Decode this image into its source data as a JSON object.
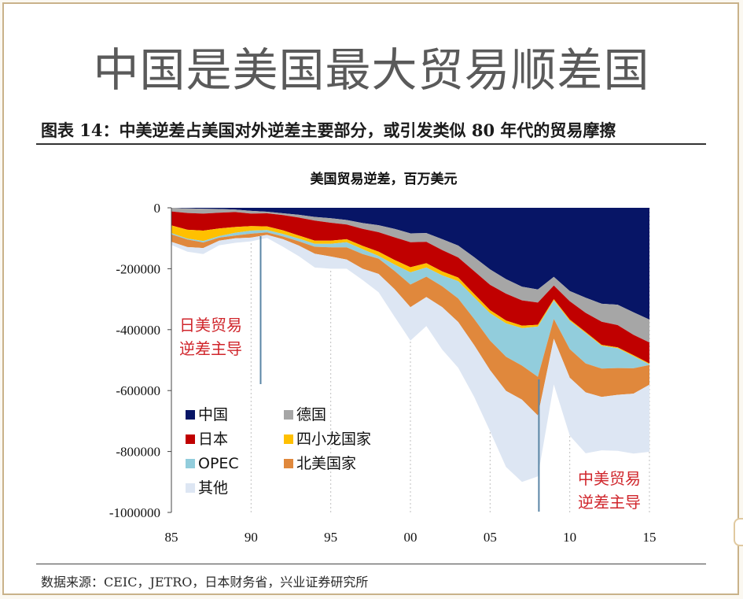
{
  "slide_title": "中国是美国最大贸易顺差国",
  "figure_caption": "图表 14：中美逆差占美国对外逆差主要部分，或引发类似 80 年代的贸易摩擦",
  "source_note": "数据来源：CEIC，JETRO，日本财务省，兴业证券研究所",
  "chart_data": {
    "type": "area",
    "stacked": true,
    "title": "美国贸易逆差，百万美元",
    "xlabel": "",
    "ylabel": "",
    "x": [
      1985,
      1986,
      1987,
      1988,
      1989,
      1990,
      1991,
      1992,
      1993,
      1994,
      1995,
      1996,
      1997,
      1998,
      1999,
      2000,
      2001,
      2002,
      2003,
      2004,
      2005,
      2006,
      2007,
      2008,
      2009,
      2010,
      2011,
      2012,
      2013,
      2014,
      2015
    ],
    "xtick_values": [
      1985,
      1990,
      1995,
      2000,
      2005,
      2010,
      2015
    ],
    "xtick_labels": [
      "85",
      "90",
      "95",
      "00",
      "05",
      "10",
      "15"
    ],
    "ylim": [
      -1000000,
      0
    ],
    "ytick_values": [
      0,
      -200000,
      -400000,
      -600000,
      -800000,
      -1000000
    ],
    "ytick_labels": [
      "0",
      "-200000",
      "-400000",
      "-600000",
      "-800000",
      "-1000000"
    ],
    "grid": "vertical dotted at x ticks",
    "legend_placement": "lower-left, two columns",
    "series": [
      {
        "name": "中国",
        "color": "#071566",
        "values": [
          0,
          -2000,
          -3000,
          -4000,
          -6000,
          -10000,
          -13000,
          -18000,
          -23000,
          -30000,
          -34000,
          -40000,
          -50000,
          -57000,
          -69000,
          -84000,
          -83000,
          -103000,
          -124000,
          -162000,
          -202000,
          -234000,
          -259000,
          -268000,
          -227000,
          -273000,
          -295000,
          -315000,
          -318000,
          -343000,
          -367000
        ]
      },
      {
        "name": "德国",
        "color": "#a6a6a6",
        "values": [
          -12000,
          -15000,
          -16000,
          -12000,
          -8000,
          -9000,
          -5000,
          -6000,
          -9000,
          -12000,
          -15000,
          -15000,
          -19000,
          -23000,
          -28000,
          -29000,
          -29000,
          -36000,
          -39000,
          -46000,
          -51000,
          -48000,
          -45000,
          -43000,
          -28000,
          -34000,
          -50000,
          -59000,
          -67000,
          -74000,
          -75000
        ]
      },
      {
        "name": "日本",
        "color": "#c00000",
        "values": [
          -46000,
          -55000,
          -56000,
          -52000,
          -49000,
          -41000,
          -43000,
          -50000,
          -59000,
          -66000,
          -59000,
          -48000,
          -56000,
          -64000,
          -74000,
          -82000,
          -70000,
          -70000,
          -66000,
          -75000,
          -83000,
          -88000,
          -83000,
          -73000,
          -45000,
          -60000,
          -63000,
          -76000,
          -73000,
          -67000,
          -69000
        ]
      },
      {
        "name": "四小龙国家",
        "color": "#ffc000",
        "values": [
          -25000,
          -29000,
          -34000,
          -25000,
          -19000,
          -15000,
          -12000,
          -12000,
          -10000,
          -10000,
          -10000,
          -10000,
          -11000,
          -14000,
          -15000,
          -17000,
          -14000,
          -13000,
          -12000,
          -11000,
          -10000,
          -9000,
          -8000,
          -6000,
          -4000,
          -4000,
          -3000,
          -3000,
          -3000,
          -3000,
          -3000
        ]
      },
      {
        "name": "OPEC",
        "color": "#92cddc",
        "values": [
          -4000,
          -3000,
          -5000,
          -5000,
          -9000,
          -10000,
          -8000,
          -8000,
          -9000,
          -10000,
          -12000,
          -17000,
          -16000,
          -9000,
          -21000,
          -40000,
          -30000,
          -36000,
          -57000,
          -71000,
          -90000,
          -110000,
          -123000,
          -165000,
          -61000,
          -93000,
          -100000,
          -75000,
          -65000,
          -40000,
          -2000
        ]
      },
      {
        "name": "北美国家",
        "color": "#e0883c",
        "values": [
          -25000,
          -25000,
          -18000,
          -10000,
          -9000,
          -13000,
          -8000,
          -9000,
          -14000,
          -23000,
          -30000,
          -40000,
          -48000,
          -50000,
          -60000,
          -74000,
          -67000,
          -68000,
          -77000,
          -86000,
          -97000,
          -112000,
          -112000,
          -127000,
          -65000,
          -94000,
          -95000,
          -93000,
          -88000,
          -83000,
          -65000
        ]
      },
      {
        "name": "其他",
        "color": "#dde6f3",
        "values": [
          -10000,
          -15000,
          -20000,
          -15000,
          -15000,
          -12000,
          -10000,
          -25000,
          -35000,
          -45000,
          -40000,
          -30000,
          -37000,
          -60000,
          -90000,
          -110000,
          -95000,
          -140000,
          -150000,
          -170000,
          -200000,
          -250000,
          -270000,
          -200000,
          -150000,
          -190000,
          -200000,
          -175000,
          -184000,
          -197000,
          -220000
        ]
      }
    ],
    "annotations": [
      {
        "text_line1": "日美贸易",
        "text_line2": "逆差主导",
        "x": 1990.6,
        "color": "#d0262c"
      },
      {
        "text_line1": "中美贸易",
        "text_line2": "逆差主导",
        "x": 2009,
        "color": "#d0262c"
      }
    ]
  }
}
